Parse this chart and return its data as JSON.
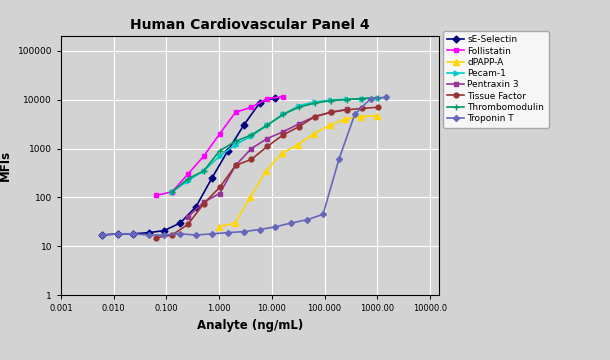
{
  "title": "Human Cardiovascular Panel 4",
  "xlabel": "Analyte (ng/mL)",
  "ylabel": "MFIs",
  "background_color": "#d3d3d3",
  "fig_facecolor": "#d3d3d3",
  "series": [
    {
      "name": "sE-Selectin",
      "color": "#000080",
      "marker": "D",
      "ms": 3.5,
      "lw": 1.2,
      "x": [
        0.006,
        0.012,
        0.023,
        0.046,
        0.091,
        0.183,
        0.366,
        0.732,
        1.465,
        2.93,
        5.859,
        11.719
      ],
      "y": [
        17,
        18,
        18,
        19,
        21,
        30,
        65,
        250,
        900,
        3000,
        8500,
        11000
      ]
    },
    {
      "name": "Follistatin",
      "color": "#FF00FF",
      "marker": "s",
      "ms": 3.5,
      "lw": 1.2,
      "x": [
        0.064,
        0.128,
        0.256,
        0.512,
        1.024,
        2.048,
        4.096,
        8.192,
        16.384
      ],
      "y": [
        110,
        130,
        300,
        700,
        2000,
        5500,
        7000,
        10500,
        11500
      ]
    },
    {
      "name": "dPAPP-A",
      "color": "#FFD700",
      "marker": "^",
      "ms": 4,
      "lw": 1.2,
      "x": [
        1.0,
        2.0,
        3.9,
        7.8,
        15.6,
        31.25,
        62.5,
        125.0,
        250.0,
        500.0,
        1000.0
      ],
      "y": [
        25,
        30,
        100,
        350,
        800,
        1200,
        2000,
        3000,
        4000,
        4500,
        4700
      ]
    },
    {
      "name": "Pecam-1",
      "color": "#00CCCC",
      "marker": ">",
      "ms": 3.5,
      "lw": 1.2,
      "x": [
        0.128,
        0.256,
        0.512,
        1.024,
        2.048,
        4.096,
        8.192,
        16.384,
        32.768,
        65.536,
        131.072,
        262.144,
        524.288,
        1048.576
      ],
      "y": [
        130,
        220,
        350,
        700,
        1200,
        1800,
        3000,
        5000,
        7500,
        9000,
        9800,
        10200,
        10500,
        11000
      ]
    },
    {
      "name": "Pentraxin 3",
      "color": "#993399",
      "marker": "s",
      "ms": 3.5,
      "lw": 1.2,
      "x": [
        0.256,
        0.512,
        1.024,
        2.048,
        4.096,
        8.192,
        16.384,
        32.768,
        65.536,
        131.072,
        262.144
      ],
      "y": [
        40,
        80,
        120,
        450,
        1000,
        1600,
        2200,
        3200,
        4500,
        5500,
        6300
      ]
    },
    {
      "name": "Tissue Factor",
      "color": "#993333",
      "marker": "o",
      "ms": 3.5,
      "lw": 1.2,
      "x": [
        0.064,
        0.128,
        0.256,
        0.512,
        1.024,
        2.048,
        4.096,
        8.192,
        16.384,
        32.768,
        65.536,
        131.072,
        262.144,
        524.288,
        1048.576
      ],
      "y": [
        15,
        17,
        28,
        75,
        160,
        450,
        600,
        1100,
        1900,
        2800,
        4500,
        5500,
        6200,
        6600,
        7000
      ]
    },
    {
      "name": "Thrombomodulin",
      "color": "#009966",
      "marker": "+",
      "ms": 5,
      "lw": 1.2,
      "x": [
        0.128,
        0.256,
        0.512,
        1.024,
        2.048,
        4.096,
        8.192,
        16.384,
        32.768,
        65.536,
        131.072,
        262.144,
        524.288,
        1048.576
      ],
      "y": [
        130,
        240,
        350,
        900,
        1400,
        1900,
        3000,
        5000,
        7000,
        8500,
        9500,
        10000,
        10500,
        11000
      ]
    },
    {
      "name": "Troponin T",
      "color": "#6666BB",
      "marker": "D",
      "ms": 3,
      "lw": 1.2,
      "x": [
        0.006,
        0.012,
        0.023,
        0.046,
        0.091,
        0.183,
        0.366,
        0.732,
        1.465,
        2.93,
        5.859,
        11.719,
        23.437,
        46.875,
        93.75,
        187.5,
        375.0,
        750.0,
        1500.0
      ],
      "y": [
        17,
        18,
        18,
        17,
        17,
        18,
        17,
        18,
        19,
        20,
        22,
        25,
        30,
        35,
        45,
        600,
        5000,
        10500,
        11200
      ]
    }
  ],
  "xticks": [
    0.001,
    0.01,
    0.1,
    1.0,
    10.0,
    100.0,
    1000.0,
    10000.0
  ],
  "xtick_labels": [
    "0.001",
    "0.010",
    "0.100",
    "1.000",
    "10.000",
    "100.000",
    "1000.00",
    "10000.0"
  ],
  "yticks": [
    1,
    10,
    100,
    1000,
    10000,
    100000
  ],
  "ytick_labels": [
    "1",
    "10",
    "100",
    "1000",
    "10000",
    "100000"
  ],
  "xlim": [
    0.001,
    15000
  ],
  "ylim": [
    1,
    200000
  ]
}
